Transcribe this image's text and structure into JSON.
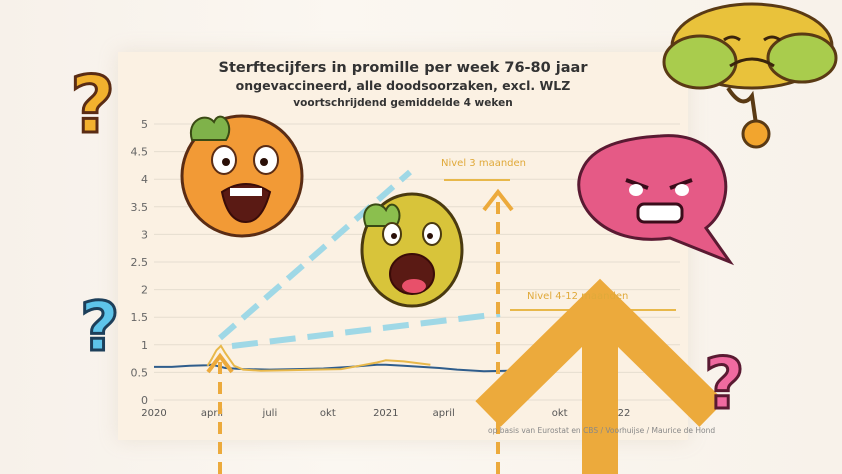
{
  "title": "Sterftecijfers in promille per week 76-80 jaar",
  "subtitle": "ongevaccineerd, alle doodsoorzaken, excl. WLZ",
  "subtitle2": "voortschrijdend gemiddelde 4 weken",
  "annotations": {
    "level_3m": "Nivel 3 maanden",
    "level_4_12m": "Nivel 4-12 maanden"
  },
  "credit": "op basis van Eurostat en CBS / Voorhuijse / Maurice de Hond",
  "colors": {
    "blue_line": "#2f5d8c",
    "orange_line": "#e8b84a",
    "arrow": "#ecaa3c",
    "dashed": "#9fd8e6",
    "card": "#fbf1e3"
  },
  "icons": [
    "question-mark-icon",
    "scared-face-icon",
    "screaming-face-icon",
    "angry-bubble-icon",
    "confused-cloud-icon",
    "up-arrow-icon"
  ],
  "chart_data": {
    "type": "line",
    "ylim": [
      0,
      5
    ],
    "yticks": [
      0,
      0.5,
      1,
      1.5,
      2,
      2.5,
      3,
      3.5,
      4,
      4.5,
      5
    ],
    "xticks": [
      {
        "label": "2020",
        "x": 0
      },
      {
        "label": "april",
        "x": 13
      },
      {
        "label": "juli",
        "x": 26
      },
      {
        "label": "okt",
        "x": 39
      },
      {
        "label": "2021",
        "x": 52
      },
      {
        "label": "april",
        "x": 65
      },
      {
        "label": "okt",
        "x": 91
      },
      {
        "label": "2022",
        "x": 104
      }
    ],
    "xlim": [
      0,
      118
    ],
    "series": [
      {
        "color": "#2f5d8c",
        "x": [
          0,
          4,
          8,
          12,
          13,
          14,
          16,
          20,
          26,
          32,
          38,
          44,
          50,
          52,
          56,
          60,
          64,
          68,
          74,
          80,
          86,
          90
        ],
        "y": [
          0.6,
          0.6,
          0.62,
          0.63,
          0.64,
          0.62,
          0.58,
          0.56,
          0.55,
          0.56,
          0.57,
          0.6,
          0.64,
          0.64,
          0.62,
          0.6,
          0.58,
          0.55,
          0.52,
          0.53,
          0.55,
          0.56
        ]
      },
      {
        "color": "#e8b84a",
        "x": [
          12,
          13,
          14,
          15,
          16,
          18,
          20,
          24,
          30,
          36,
          42,
          46,
          50,
          52,
          56,
          60,
          62
        ],
        "y": [
          0.62,
          0.75,
          0.9,
          0.98,
          0.85,
          0.62,
          0.55,
          0.53,
          0.54,
          0.55,
          0.56,
          0.62,
          0.68,
          0.72,
          0.7,
          0.66,
          0.64
        ]
      }
    ]
  }
}
